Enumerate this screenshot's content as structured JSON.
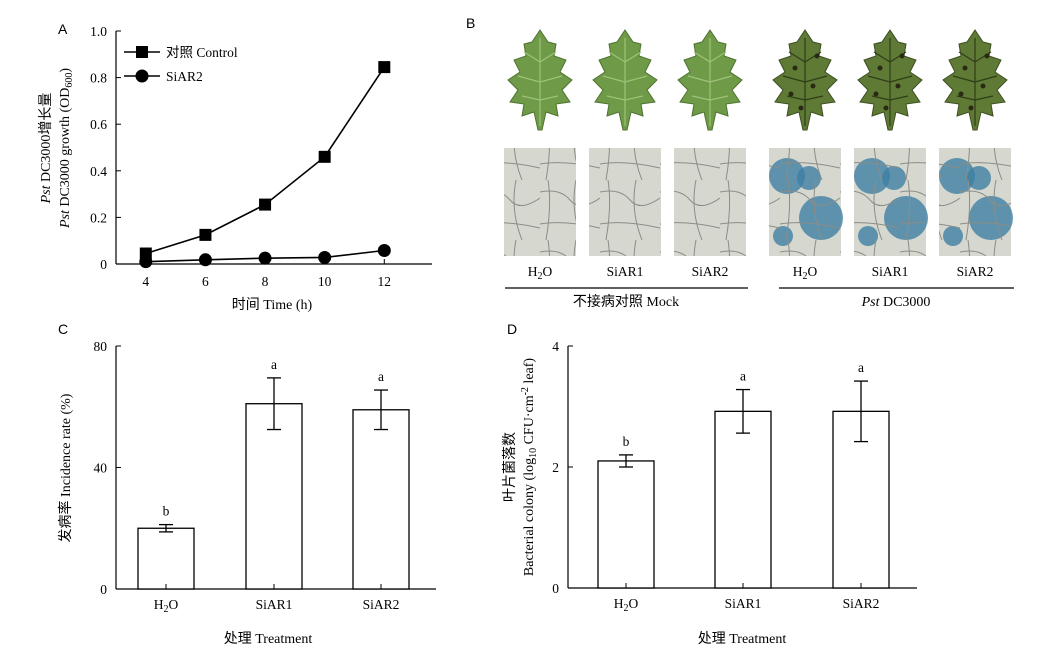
{
  "panel_a": {
    "letter": "A",
    "ylabel_line1_it": "Pst",
    "ylabel_line1_rest": " DC3000增长量",
    "ylabel_line2_it": "Pst",
    "ylabel_line2_rest": " DC3000 growth (OD",
    "ylabel_line2_sub": "600",
    "ylabel_line2_close": ")",
    "xlabel": "时间 Time (h)"
  },
  "panel_b": {
    "letter": "B",
    "mock_label": "不接病对照 Mock",
    "pst_label_it": "Pst",
    "pst_label_rest": " DC3000",
    "treatments": [
      "H2O",
      "SiAR1",
      "SiAR2",
      "H2O",
      "SiAR1",
      "SiAR2"
    ]
  },
  "panel_c": {
    "letter": "C",
    "ylabel": "发病率 Incidence rate (%)",
    "xlabel": "处理 Treatment"
  },
  "panel_d": {
    "letter": "D",
    "ylabel_line1": "叶片菌落数",
    "ylabel_line2_pre": "Bacterial colony (log",
    "ylabel_line2_sub": "10",
    "ylabel_line2_mid": " CFU·cm",
    "ylabel_line2_sup": "-2",
    "ylabel_line2_post": " leaf)",
    "xlabel": "处理 Treatment"
  },
  "colors": {
    "leaf_mock": "#6f9a47",
    "leaf_pst": "#5f7a35",
    "stain": "#3f7fa3",
    "micro_bg": "#d6d8d0"
  },
  "chart_data": [
    {
      "type": "line",
      "panel": "A",
      "x": [
        4,
        6,
        8,
        10,
        12
      ],
      "xlim": [
        3,
        13.6
      ],
      "ylim": [
        0,
        1.0
      ],
      "yticks": [
        0,
        0.2,
        0.4,
        0.6,
        0.8,
        1.0
      ],
      "ytick_labels": [
        "0",
        "0.2",
        "0.4",
        "0.6",
        "0.8",
        "1.0"
      ],
      "xticks": [
        4,
        6,
        8,
        10,
        12
      ],
      "legend": "top-left",
      "series": [
        {
          "name": "对照 Control",
          "marker": "square",
          "values": [
            0.045,
            0.125,
            0.255,
            0.46,
            0.845
          ]
        },
        {
          "name": "SiAR2",
          "marker": "circle",
          "values": [
            0.01,
            0.018,
            0.025,
            0.028,
            0.058
          ]
        }
      ]
    },
    {
      "type": "bar",
      "panel": "C",
      "categories": [
        "H2O",
        "SiAR1",
        "SiAR2"
      ],
      "values": [
        20,
        61,
        59
      ],
      "errors": [
        1.2,
        8.5,
        6.5
      ],
      "labels": [
        "b",
        "a",
        "a"
      ],
      "ylim": [
        0,
        80
      ],
      "yticks": [
        0,
        40,
        80
      ]
    },
    {
      "type": "bar",
      "panel": "D",
      "categories": [
        "H2O",
        "SiAR1",
        "SiAR2"
      ],
      "values": [
        2.1,
        2.92,
        2.92
      ],
      "errors": [
        0.1,
        0.36,
        0.5
      ],
      "labels": [
        "b",
        "a",
        "a"
      ],
      "ylim": [
        0,
        4
      ],
      "yticks": [
        0,
        2,
        4
      ]
    }
  ]
}
